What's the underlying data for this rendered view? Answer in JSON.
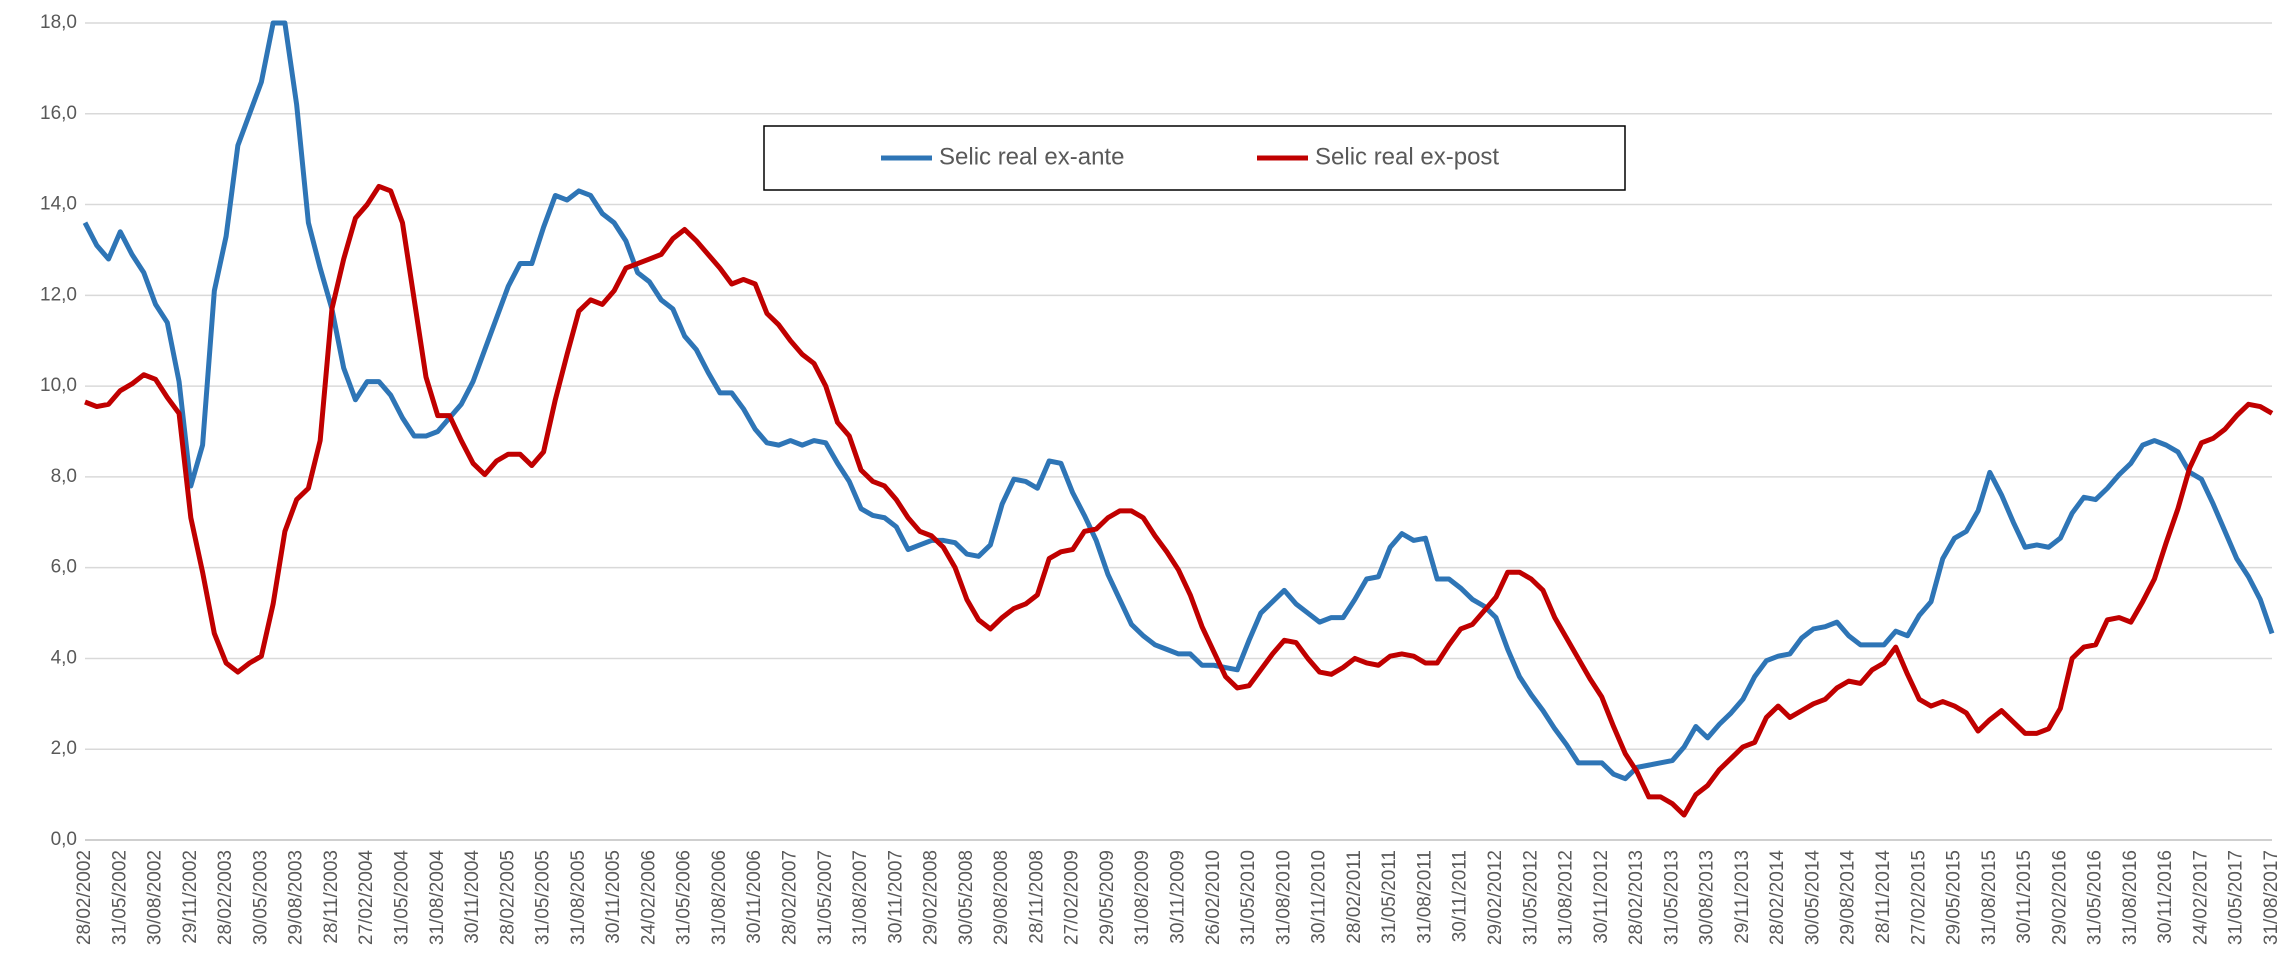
{
  "chart_data": {
    "type": "line",
    "categories": [
      "28/02/2002",
      null,
      null,
      "31/05/2002",
      null,
      null,
      "30/08/2002",
      null,
      null,
      "29/11/2002",
      null,
      null,
      "28/02/2003",
      null,
      null,
      "30/05/2003",
      null,
      null,
      "29/08/2003",
      null,
      null,
      "28/11/2003",
      null,
      null,
      "27/02/2004",
      null,
      null,
      "31/05/2004",
      null,
      null,
      "31/08/2004",
      null,
      null,
      "30/11/2004",
      null,
      null,
      "28/02/2005",
      null,
      null,
      "31/05/2005",
      null,
      null,
      "31/08/2005",
      null,
      null,
      "30/11/2005",
      null,
      null,
      "24/02/2006",
      null,
      null,
      "31/05/2006",
      null,
      null,
      "31/08/2006",
      null,
      null,
      "30/11/2006",
      null,
      null,
      "28/02/2007",
      null,
      null,
      "31/05/2007",
      null,
      null,
      "31/08/2007",
      null,
      null,
      "30/11/2007",
      null,
      null,
      "29/02/2008",
      null,
      null,
      "30/05/2008",
      null,
      null,
      "29/08/2008",
      null,
      null,
      "28/11/2008",
      null,
      null,
      "27/02/2009",
      null,
      null,
      "29/05/2009",
      null,
      null,
      "31/08/2009",
      null,
      null,
      "30/11/2009",
      null,
      null,
      "26/02/2010",
      null,
      null,
      "31/05/2010",
      null,
      null,
      "31/08/2010",
      null,
      null,
      "30/11/2010",
      null,
      null,
      "28/02/2011",
      null,
      null,
      "31/05/2011",
      null,
      null,
      "31/08/2011",
      null,
      null,
      "30/11/2011",
      null,
      null,
      "29/02/2012",
      null,
      null,
      "31/05/2012",
      null,
      null,
      "31/08/2012",
      null,
      null,
      "30/11/2012",
      null,
      null,
      "28/02/2013",
      null,
      null,
      "31/05/2013",
      null,
      null,
      "30/08/2013",
      null,
      null,
      "29/11/2013",
      null,
      null,
      "28/02/2014",
      null,
      null,
      "30/05/2014",
      null,
      null,
      "29/08/2014",
      null,
      null,
      "28/11/2014",
      null,
      null,
      "27/02/2015",
      null,
      null,
      "29/05/2015",
      null,
      null,
      "31/08/2015",
      null,
      null,
      "30/11/2015",
      null,
      null,
      "29/02/2016",
      null,
      null,
      "31/05/2016",
      null,
      null,
      "31/08/2016",
      null,
      null,
      "30/11/2016",
      null,
      null,
      "24/02/2017",
      null,
      null,
      "31/05/2017",
      null,
      null,
      "31/08/2017"
    ],
    "series": [
      {
        "name": "Selic real ex-ante",
        "color": "#2e75b6",
        "values": [
          13.6,
          13.1,
          12.8,
          13.4,
          12.9,
          12.5,
          11.8,
          11.4,
          10.1,
          7.8,
          8.7,
          12.1,
          13.3,
          15.3,
          16.0,
          16.7,
          18.0,
          18.0,
          16.2,
          13.6,
          12.6,
          11.7,
          10.4,
          9.7,
          10.1,
          10.1,
          9.8,
          9.3,
          8.9,
          8.9,
          9.0,
          9.3,
          9.6,
          10.1,
          10.8,
          11.5,
          12.2,
          12.7,
          12.7,
          13.5,
          14.2,
          14.1,
          14.3,
          14.2,
          13.8,
          13.6,
          13.2,
          12.5,
          12.3,
          11.9,
          11.7,
          11.1,
          10.8,
          10.3,
          9.85,
          9.85,
          9.5,
          9.05,
          8.75,
          8.7,
          8.8,
          8.7,
          8.8,
          8.75,
          8.3,
          7.9,
          7.3,
          7.15,
          7.1,
          6.9,
          6.4,
          6.5,
          6.6,
          6.6,
          6.55,
          6.3,
          6.25,
          6.5,
          7.4,
          7.95,
          7.9,
          7.75,
          8.35,
          8.3,
          7.65,
          7.15,
          6.6,
          5.85,
          5.3,
          4.75,
          4.5,
          4.3,
          4.2,
          4.1,
          4.1,
          3.85,
          3.85,
          3.8,
          3.75,
          4.4,
          5.0,
          5.25,
          5.5,
          5.2,
          5.0,
          4.8,
          4.9,
          4.9,
          5.3,
          5.75,
          5.8,
          6.45,
          6.75,
          6.6,
          6.65,
          5.75,
          5.75,
          5.55,
          5.3,
          5.15,
          4.9,
          4.2,
          3.6,
          3.2,
          2.85,
          2.45,
          2.1,
          1.7,
          1.7,
          1.7,
          1.45,
          1.35,
          1.6,
          1.65,
          1.7,
          1.75,
          2.05,
          2.5,
          2.25,
          2.55,
          2.8,
          3.1,
          3.6,
          3.95,
          4.05,
          4.1,
          4.45,
          4.65,
          4.7,
          4.8,
          4.5,
          4.3,
          4.3,
          4.3,
          4.6,
          4.5,
          4.95,
          5.25,
          6.2,
          6.65,
          6.8,
          7.25,
          8.1,
          7.6,
          7.0,
          6.45,
          6.5,
          6.45,
          6.65,
          7.2,
          7.55,
          7.5,
          7.75,
          8.05,
          8.3,
          8.7,
          8.8,
          8.7,
          8.55,
          8.1,
          7.95,
          7.4,
          6.8,
          6.2,
          5.8,
          5.3,
          4.55
        ]
      },
      {
        "name": "Selic real ex-post",
        "color": "#c00000",
        "values": [
          9.65,
          9.55,
          9.6,
          9.9,
          10.05,
          10.25,
          10.15,
          9.75,
          9.4,
          7.1,
          5.9,
          4.55,
          3.9,
          3.7,
          3.9,
          4.05,
          5.2,
          6.8,
          7.5,
          7.75,
          8.8,
          11.7,
          12.8,
          13.7,
          14.0,
          14.4,
          14.3,
          13.6,
          11.9,
          10.2,
          9.35,
          9.35,
          8.8,
          8.3,
          8.05,
          8.35,
          8.5,
          8.5,
          8.25,
          8.55,
          9.7,
          10.7,
          11.65,
          11.9,
          11.8,
          12.1,
          12.6,
          12.7,
          12.8,
          12.9,
          13.25,
          13.45,
          13.2,
          12.9,
          12.6,
          12.25,
          12.35,
          12.25,
          11.6,
          11.35,
          11.0,
          10.7,
          10.5,
          10.0,
          9.2,
          8.9,
          8.15,
          7.9,
          7.8,
          7.5,
          7.1,
          6.8,
          6.7,
          6.45,
          6.0,
          5.3,
          4.85,
          4.65,
          4.9,
          5.1,
          5.2,
          5.4,
          6.2,
          6.35,
          6.4,
          6.8,
          6.85,
          7.1,
          7.25,
          7.25,
          7.1,
          6.7,
          6.35,
          5.95,
          5.4,
          4.7,
          4.15,
          3.6,
          3.35,
          3.4,
          3.75,
          4.1,
          4.4,
          4.35,
          4.0,
          3.7,
          3.65,
          3.8,
          4.0,
          3.9,
          3.85,
          4.05,
          4.1,
          4.05,
          3.9,
          3.9,
          4.3,
          4.65,
          4.75,
          5.05,
          5.35,
          5.9,
          5.9,
          5.75,
          5.5,
          4.9,
          4.45,
          4.0,
          3.55,
          3.15,
          2.5,
          1.9,
          1.5,
          0.95,
          0.95,
          0.8,
          0.55,
          1.0,
          1.2,
          1.55,
          1.8,
          2.05,
          2.15,
          2.7,
          2.95,
          2.7,
          2.85,
          3.0,
          3.1,
          3.35,
          3.5,
          3.45,
          3.75,
          3.9,
          4.25,
          3.65,
          3.1,
          2.95,
          3.05,
          2.95,
          2.8,
          2.4,
          2.65,
          2.85,
          2.6,
          2.35,
          2.35,
          2.45,
          2.9,
          4.0,
          4.25,
          4.3,
          4.85,
          4.9,
          4.8,
          5.25,
          5.75,
          6.55,
          7.3,
          8.2,
          8.75,
          8.85,
          9.05,
          9.35,
          9.6,
          9.55,
          9.4
        ]
      }
    ],
    "ylim": [
      0,
      18
    ],
    "yticks": [
      {
        "value": 0,
        "label": "0,0"
      },
      {
        "value": 2,
        "label": "2,0"
      },
      {
        "value": 4,
        "label": "4,0"
      },
      {
        "value": 6,
        "label": "6,0"
      },
      {
        "value": 8,
        "label": "8,0"
      },
      {
        "value": 10,
        "label": "10,0"
      },
      {
        "value": 12,
        "label": "12,0"
      },
      {
        "value": 14,
        "label": "14,0"
      },
      {
        "value": 16,
        "label": "16,0"
      },
      {
        "value": 18,
        "label": "18,0"
      }
    ],
    "grid": true,
    "legend": "top-center"
  }
}
